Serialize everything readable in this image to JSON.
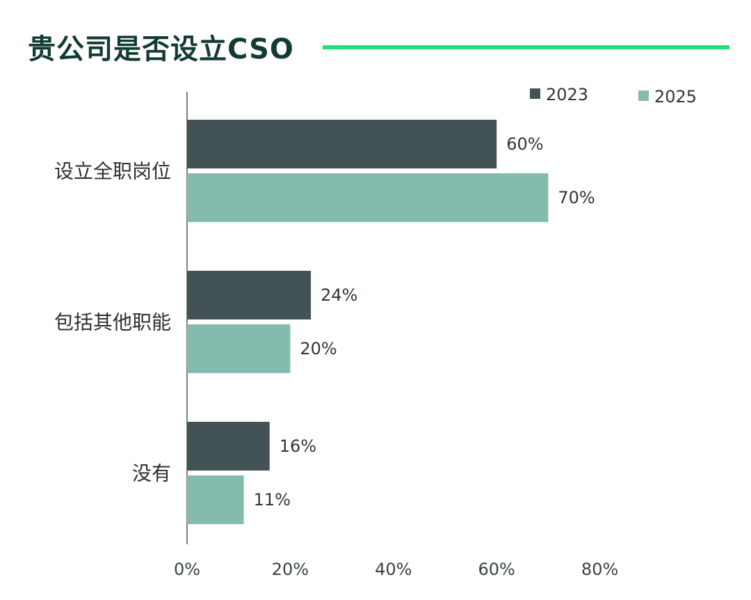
{
  "chart_data": {
    "type": "bar",
    "orientation": "horizontal",
    "title": "贵公司是否设立CSO",
    "categories": [
      "设立全职岗位",
      "包括其他职能",
      "没有"
    ],
    "series": [
      {
        "name": "2023",
        "values": [
          60,
          24,
          16
        ],
        "labels": [
          "60%",
          "24%",
          "16%"
        ],
        "color": "#435355"
      },
      {
        "name": "2025",
        "values": [
          70,
          20,
          11
        ],
        "labels": [
          "70%",
          "20%",
          "11%"
        ],
        "color": "#85bbaf"
      }
    ],
    "xlim": [
      0,
      80
    ],
    "xticks": [
      0,
      20,
      40,
      60,
      80
    ],
    "xtick_labels": [
      "0%",
      "20%",
      "40%",
      "60%",
      "80%"
    ],
    "xlabel": "",
    "ylabel": "",
    "grid": false,
    "legend": "top-right",
    "accent_color": "#1fe07a",
    "title_color": "#123b33"
  }
}
